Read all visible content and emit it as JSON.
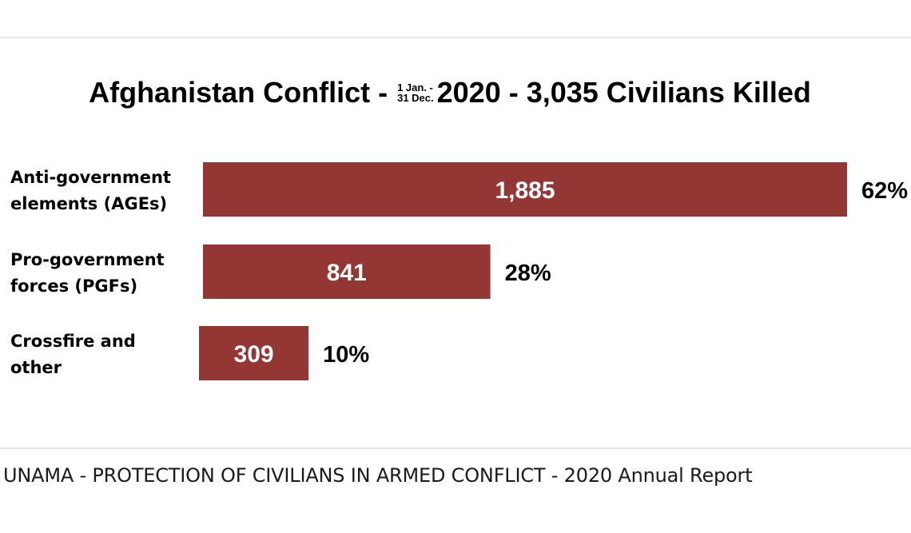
{
  "chart_data": {
    "type": "bar",
    "orientation": "horizontal",
    "title": {
      "prefix": "Afghanistan Conflict -",
      "period_line1": "1 Jan. -",
      "period_line2": "31 Dec.",
      "suffix": "2020 - 3,035 Civilians Killed"
    },
    "categories": [
      [
        "Anti-government",
        "elements (AGEs)"
      ],
      [
        "Pro-government",
        "forces (PGFs)"
      ],
      [
        "Crossfire and",
        "other"
      ]
    ],
    "values": [
      1885,
      841,
      309
    ],
    "value_labels": [
      "1,885",
      "841",
      "309"
    ],
    "percent_labels": [
      "62%",
      "28%",
      "10%"
    ],
    "xlim": [
      0,
      1885
    ],
    "bar_color": "#943634",
    "grid": false,
    "legend": "none"
  },
  "footer": {
    "text": "UNAMA - PROTECTION OF CIVILIANS IN ARMED CONFLICT - 2020 Annual Report"
  }
}
